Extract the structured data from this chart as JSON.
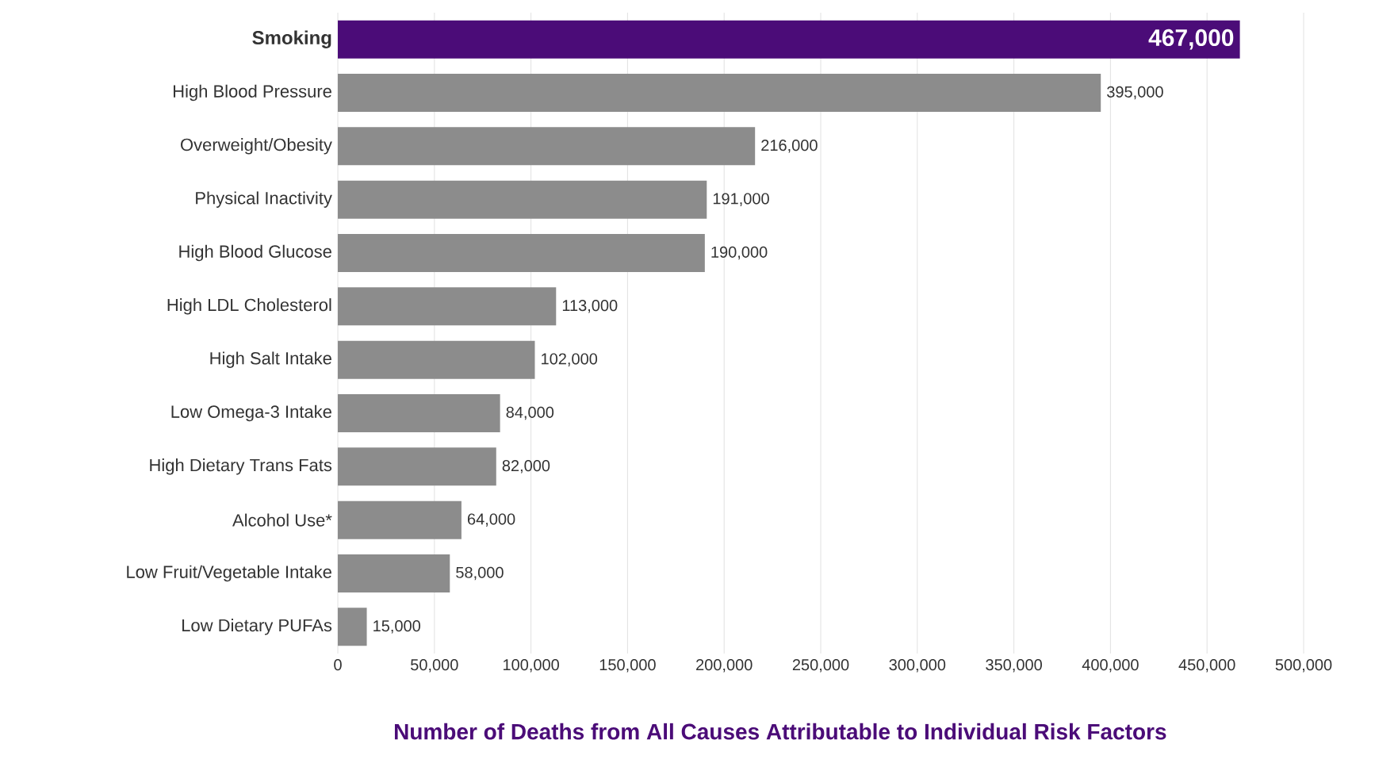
{
  "chart_data": {
    "type": "bar",
    "orientation": "horizontal",
    "xlabel": "Number of Deaths from All Causes Attributable to Individual Risk Factors",
    "categories": [
      "Smoking",
      "High Blood Pressure",
      "Overweight/Obesity",
      "Physical Inactivity",
      "High Blood Glucose",
      "High LDL Cholesterol",
      "High Salt Intake",
      "Low Omega-3 Intake",
      "High Dietary Trans Fats",
      "Alcohol Use*",
      "Low Fruit/Vegetable Intake",
      "Low Dietary PUFAs"
    ],
    "values": [
      467000,
      395000,
      216000,
      191000,
      190000,
      113000,
      102000,
      84000,
      82000,
      64000,
      58000,
      15000
    ],
    "value_labels": [
      "467,000",
      "395,000",
      "216,000",
      "191,000",
      "190,000",
      "113,000",
      "102,000",
      "84,000",
      "82,000",
      "64,000",
      "58,000",
      "15,000"
    ],
    "colors": [
      "#4b0c78",
      "#8c8c8c",
      "#8c8c8c",
      "#8c8c8c",
      "#8c8c8c",
      "#8c8c8c",
      "#8c8c8c",
      "#8c8c8c",
      "#8c8c8c",
      "#8c8c8c",
      "#8c8c8c",
      "#8c8c8c"
    ],
    "xlim": [
      0,
      500000
    ],
    "xticks": [
      0,
      {
        "value": 50000,
        "label": "50,000"
      },
      {
        "value": 100000,
        "label": "100,000"
      },
      {
        "value": 150000,
        "label": "150,000"
      },
      {
        "value": 200000,
        "label": "200,000"
      },
      {
        "value": 250000,
        "label": "250,000"
      },
      {
        "value": 300000,
        "label": "300,000"
      },
      {
        "value": 350000,
        "label": "350,000"
      },
      {
        "value": 400000,
        "label": "400,000"
      },
      {
        "value": 450000,
        "label": "450,000"
      },
      {
        "value": 500000,
        "label": "500,000"
      }
    ],
    "grid": "x"
  }
}
